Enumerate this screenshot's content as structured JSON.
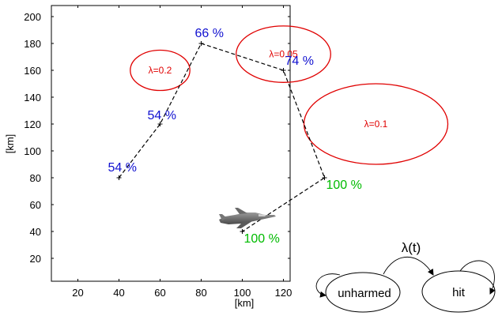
{
  "chart_data": {
    "type": "line",
    "xlabel": "[km]",
    "ylabel": "[km]",
    "xlim": [
      0,
      125
    ],
    "ylim": [
      0,
      205
    ],
    "xticks": [
      20,
      40,
      60,
      80,
      100,
      120
    ],
    "yticks": [
      20,
      40,
      60,
      80,
      100,
      120,
      140,
      160,
      180,
      200
    ],
    "grid": false,
    "path": {
      "color": "#000000",
      "style": "dashed",
      "points": [
        {
          "x": 40,
          "y": 80,
          "label": "54 %",
          "label_color": "#1010d0"
        },
        {
          "x": 60,
          "y": 120,
          "label": "54 %",
          "label_color": "#1010d0"
        },
        {
          "x": 80,
          "y": 180,
          "label": "66 %",
          "label_color": "#1010d0"
        },
        {
          "x": 120,
          "y": 160,
          "label": "74 %",
          "label_color": "#1010d0"
        },
        {
          "x": 140,
          "y": 80,
          "label": "100 %",
          "label_color": "#00bb00"
        },
        {
          "x": 100,
          "y": 40,
          "label": "100 %",
          "label_color": "#00bb00"
        }
      ]
    },
    "threat_zones": [
      {
        "label": "λ=0.2",
        "cx": 60,
        "cy": 160,
        "rx": 14.5,
        "ry": 15,
        "color": "#e00000"
      },
      {
        "label": "λ=0.05",
        "cx": 120,
        "cy": 172,
        "rx": 23,
        "ry": 21,
        "color": "#e00000"
      },
      {
        "label": "λ=0.1",
        "cx": 165,
        "cy": 120,
        "rx": 35,
        "ry": 30,
        "color": "#e00000"
      }
    ],
    "aircraft_icon": "jet-fighter-icon"
  },
  "markov": {
    "title": "λ(t)",
    "states": [
      "unharmed",
      "hit"
    ]
  }
}
